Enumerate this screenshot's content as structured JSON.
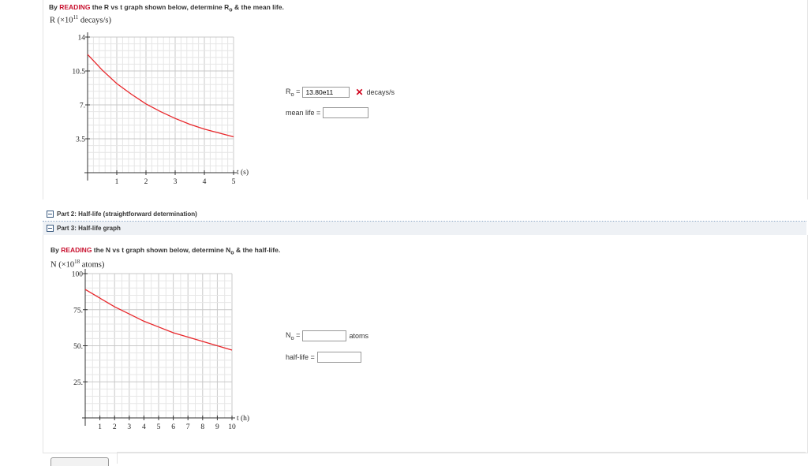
{
  "part1": {
    "instruction": {
      "prefix": "By ",
      "reading": "READING",
      "middle": " the R vs t graph shown below, determine R",
      "sub": "o",
      "suffix": " & the mean life."
    },
    "y_label": {
      "pre": "R (×10",
      "exp": "11",
      "post": " decays/s)"
    },
    "x_unit": "t (s)",
    "r0": {
      "label_main": "R",
      "label_sub": "o",
      "label_eq": " =",
      "value": "13.80e11",
      "unit": "decays/s",
      "status": "incorrect"
    },
    "mean_life": {
      "label": "mean life =",
      "value": ""
    }
  },
  "part2": {
    "label": "Part 2: Half-life (straightforward determination)"
  },
  "part3": {
    "label": "Part 3: Half-life graph",
    "instruction": {
      "prefix": "By ",
      "reading": "READING",
      "middle": " the N vs t graph shown below, determine N",
      "sub": "o",
      "suffix": " & the half-life."
    },
    "y_label": {
      "pre": "N (×10",
      "exp": "18",
      "post": " atoms)"
    },
    "x_unit": "t (h)",
    "n0": {
      "label_main": "N",
      "label_sub": "o",
      "label_eq": " =",
      "value": "",
      "unit": "atoms"
    },
    "half_life": {
      "label": "half-life =",
      "value": ""
    }
  },
  "chart_data": [
    {
      "type": "line",
      "title": "",
      "xlabel": "t (s)",
      "ylabel": "R (×10^11 decays/s)",
      "xlim": [
        0,
        5
      ],
      "ylim": [
        0,
        14
      ],
      "x_ticks": [
        1,
        2,
        3,
        4,
        5
      ],
      "x_tick_labels": [
        "1",
        "2",
        "3",
        "4",
        "5"
      ],
      "y_ticks": [
        3.5,
        7,
        10.5,
        14
      ],
      "y_tick_labels": [
        "3.5",
        "7.",
        "10.5",
        "14"
      ],
      "grid": true,
      "series": [
        {
          "color": "#e8262a",
          "x": [
            0,
            0.5,
            1,
            1.5,
            2,
            2.5,
            3,
            3.5,
            4,
            4.5,
            5
          ],
          "y": [
            12.2,
            10.6,
            9.2,
            8.1,
            7.1,
            6.3,
            5.6,
            5.0,
            4.5,
            4.1,
            3.7
          ]
        }
      ]
    },
    {
      "type": "line",
      "title": "",
      "xlabel": "t (h)",
      "ylabel": "N (×10^18 atoms)",
      "xlim": [
        0,
        10
      ],
      "ylim": [
        0,
        100
      ],
      "x_ticks": [
        1,
        2,
        3,
        4,
        5,
        6,
        7,
        8,
        9,
        10
      ],
      "x_tick_labels": [
        "1",
        "2",
        "3",
        "4",
        "5",
        "6",
        "7",
        "8",
        "9",
        "10"
      ],
      "y_ticks": [
        25,
        50,
        75,
        100
      ],
      "y_tick_labels": [
        "25.",
        "50.",
        "75.",
        "100"
      ],
      "grid": true,
      "series": [
        {
          "color": "#e8262a",
          "x": [
            0,
            1,
            2,
            3,
            4,
            5,
            6,
            7,
            8,
            9,
            10
          ],
          "y": [
            89,
            83,
            77,
            72,
            67,
            63,
            59,
            56,
            53,
            50,
            47
          ]
        }
      ]
    }
  ]
}
